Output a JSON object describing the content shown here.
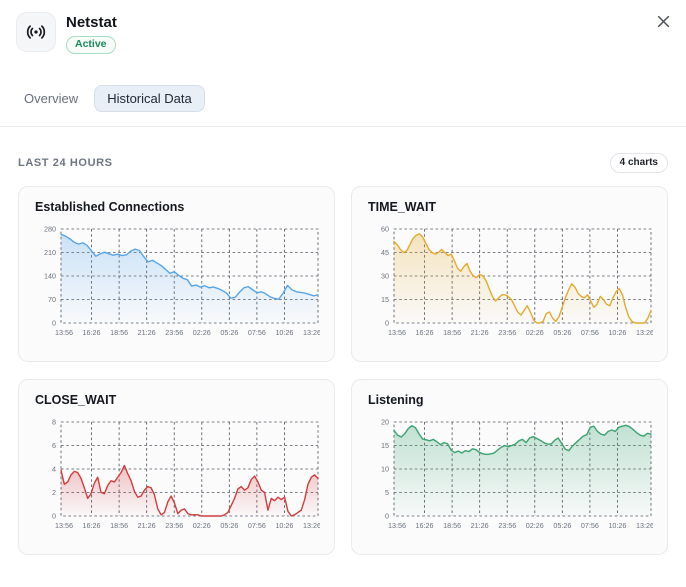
{
  "header": {
    "title": "Netstat",
    "status": "Active",
    "status_color": "#1a8a5a",
    "icon": "broadcast-icon"
  },
  "tabs": [
    {
      "label": "Overview",
      "active": false
    },
    {
      "label": "Historical Data",
      "active": true
    }
  ],
  "section": {
    "title": "LAST 24 HOURS",
    "badge": "4 charts"
  },
  "chart_data": [
    {
      "type": "area",
      "title": "Established Connections",
      "color": "#58a6e8",
      "ylim": [
        0,
        280
      ],
      "yticks": [
        0,
        70,
        140,
        210,
        280
      ],
      "xticks": [
        "13:56",
        "16:26",
        "18:56",
        "21:26",
        "23:56",
        "02:26",
        "05:26",
        "07:56",
        "10:26",
        "13:26"
      ],
      "grid": true,
      "legend": "none",
      "values": [
        264,
        259,
        251,
        241,
        235,
        239,
        231,
        215,
        199,
        206,
        211,
        206,
        202,
        205,
        201,
        203,
        214,
        220,
        216,
        198,
        182,
        187,
        179,
        171,
        160,
        148,
        153,
        142,
        133,
        129,
        110,
        113,
        107,
        111,
        105,
        107,
        103,
        97,
        89,
        74,
        77,
        92,
        105,
        108,
        99,
        90,
        93,
        87,
        78,
        73,
        71,
        89,
        112,
        99,
        93,
        91,
        89,
        85,
        81,
        84
      ]
    },
    {
      "type": "area",
      "title": "TIME_WAIT",
      "color": "#e3ab2e",
      "ylim": [
        0,
        60
      ],
      "yticks": [
        0,
        15,
        30,
        45,
        60
      ],
      "xticks": [
        "13:56",
        "16:26",
        "18:56",
        "21:26",
        "23:56",
        "02:26",
        "05:26",
        "07:56",
        "10:26",
        "13:26"
      ],
      "grid": true,
      "legend": "none",
      "values": [
        52,
        50,
        47,
        45,
        46,
        50,
        54,
        56,
        57,
        55,
        51,
        47,
        45,
        44,
        45,
        47,
        45,
        43,
        44,
        40,
        35,
        33,
        36,
        38,
        33,
        30,
        29,
        31,
        30,
        27,
        22,
        17,
        14,
        16,
        18,
        18,
        17,
        15,
        11,
        7,
        5,
        8,
        11,
        7,
        2,
        0,
        0,
        1,
        6,
        7,
        3,
        1,
        4,
        10,
        16,
        21,
        25,
        23,
        19,
        17,
        16,
        18,
        14,
        10,
        12,
        17,
        15,
        12,
        11,
        16,
        20,
        22,
        18,
        10,
        4,
        1,
        0,
        0,
        0,
        0,
        3,
        8
      ]
    },
    {
      "type": "area",
      "title": "CLOSE_WAIT",
      "color": "#d23c3c",
      "ylim": [
        0,
        8
      ],
      "yticks": [
        0,
        2,
        4,
        6,
        8
      ],
      "xticks": [
        "13:56",
        "16:26",
        "18:56",
        "21:26",
        "23:56",
        "02:26",
        "05:26",
        "07:56",
        "10:26",
        "13:26"
      ],
      "grid": true,
      "legend": "none",
      "values": [
        3.9,
        2.7,
        2.9,
        3.5,
        3.8,
        3.7,
        3.2,
        2.4,
        1.5,
        1.9,
        2.8,
        3.3,
        2.0,
        1.9,
        2.6,
        3.0,
        2.9,
        3.3,
        3.7,
        4.3,
        3.6,
        3.0,
        2.1,
        1.6,
        1.7,
        2.2,
        2.5,
        2.4,
        1.8,
        0.6,
        0.1,
        0.3,
        1.2,
        1.7,
        1.1,
        0.2,
        0.5,
        0.6,
        0.2,
        0.1,
        0.1,
        0.1,
        0,
        0,
        0,
        0,
        0,
        0,
        0,
        0.1,
        0.3,
        0.9,
        1.5,
        2.3,
        2.5,
        2.2,
        2.4,
        3.1,
        3.4,
        2.9,
        2.2,
        2.0,
        0.5,
        1.5,
        1.3,
        1.6,
        1.4,
        1.6,
        0.4,
        0,
        0.1,
        0.3,
        0.5,
        1.4,
        2.7,
        3.3,
        3.5,
        3.2
      ]
    },
    {
      "type": "area",
      "title": "Listening",
      "color": "#3aa370",
      "ylim": [
        0,
        20
      ],
      "yticks": [
        0,
        5,
        10,
        15,
        20
      ],
      "xticks": [
        "13:56",
        "16:26",
        "18:56",
        "21:26",
        "23:56",
        "02:26",
        "05:26",
        "07:56",
        "10:26",
        "13:26"
      ],
      "grid": true,
      "legend": "none",
      "values": [
        18.2,
        17.2,
        16.8,
        17.5,
        18.6,
        19.2,
        18.8,
        17.5,
        16.4,
        16.2,
        16.0,
        16.3,
        15.8,
        15.2,
        15.6,
        15.4,
        14.0,
        13.5,
        13.8,
        13.4,
        13.9,
        13.7,
        14.3,
        14.1,
        13.5,
        13.2,
        13.1,
        13.2,
        13.4,
        14.0,
        14.6,
        15.0,
        14.7,
        15.0,
        15.3,
        16.0,
        16.3,
        15.6,
        16.6,
        16.9,
        16.5,
        16.1,
        15.6,
        15.3,
        15.3,
        16.1,
        16.6,
        15.4,
        14.2,
        13.9,
        14.9,
        15.6,
        16.3,
        17.0,
        17.3,
        18.9,
        19.1,
        18.0,
        17.4,
        17.2,
        18.0,
        18.3,
        18.0,
        18.9,
        19.1,
        19.3,
        19.0,
        18.4,
        17.7,
        17.2,
        17.0,
        17.6,
        17.4
      ]
    }
  ]
}
